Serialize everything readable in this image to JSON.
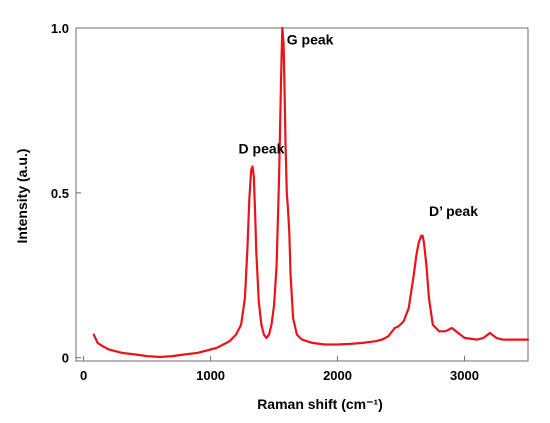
{
  "chart_data": {
    "type": "line",
    "xlabel": "Raman shift (cm⁻¹)",
    "ylabel": "Intensity (a.u.)",
    "xlim": [
      -60,
      3500
    ],
    "ylim": [
      -0.01,
      1.0
    ],
    "x_ticks": [
      {
        "value": 0,
        "label": "0"
      },
      {
        "value": 1000,
        "label": "1000"
      },
      {
        "value": 2000,
        "label": "2000"
      },
      {
        "value": 3000,
        "label": "3000"
      }
    ],
    "y_ticks": [
      {
        "value": 0,
        "label": "0"
      },
      {
        "value": 0.5,
        "label": "0.5"
      },
      {
        "value": 1.0,
        "label": "1.0"
      }
    ],
    "grid": false,
    "series": [
      {
        "color": "#e8141b",
        "x": [
          80,
          110,
          150,
          200,
          300,
          400,
          500,
          600,
          700,
          800,
          900,
          1000,
          1050,
          1100,
          1150,
          1200,
          1240,
          1270,
          1290,
          1305,
          1320,
          1330,
          1340,
          1350,
          1360,
          1380,
          1400,
          1420,
          1440,
          1460,
          1480,
          1500,
          1520,
          1540,
          1555,
          1565,
          1575,
          1582,
          1590,
          1600,
          1610,
          1620,
          1630,
          1650,
          1680,
          1720,
          1800,
          1900,
          2000,
          2100,
          2200,
          2300,
          2350,
          2400,
          2450,
          2480,
          2520,
          2560,
          2600,
          2620,
          2640,
          2660,
          2670,
          2680,
          2700,
          2720,
          2750,
          2800,
          2850,
          2900,
          2950,
          3000,
          3100,
          3150,
          3200,
          3250,
          3300,
          3400,
          3500
        ],
        "values": [
          0.07,
          0.045,
          0.035,
          0.025,
          0.015,
          0.01,
          0.005,
          0.002,
          0.005,
          0.01,
          0.015,
          0.025,
          0.03,
          0.04,
          0.05,
          0.07,
          0.1,
          0.18,
          0.33,
          0.48,
          0.57,
          0.58,
          0.55,
          0.45,
          0.32,
          0.17,
          0.1,
          0.07,
          0.06,
          0.07,
          0.1,
          0.16,
          0.28,
          0.55,
          0.85,
          1.0,
          0.95,
          0.82,
          0.65,
          0.5,
          0.45,
          0.38,
          0.25,
          0.12,
          0.07,
          0.055,
          0.045,
          0.04,
          0.04,
          0.042,
          0.045,
          0.05,
          0.055,
          0.065,
          0.09,
          0.095,
          0.11,
          0.15,
          0.25,
          0.31,
          0.35,
          0.37,
          0.37,
          0.35,
          0.28,
          0.18,
          0.1,
          0.08,
          0.08,
          0.09,
          0.075,
          0.06,
          0.055,
          0.06,
          0.075,
          0.06,
          0.055,
          0.055,
          0.055
        ]
      }
    ],
    "annotations": [
      {
        "text": "D peak",
        "x": 1220,
        "y": 0.62
      },
      {
        "text": "G peak",
        "x": 1600,
        "y": 0.95
      },
      {
        "text": "D’ peak",
        "x": 2720,
        "y": 0.43
      }
    ]
  }
}
